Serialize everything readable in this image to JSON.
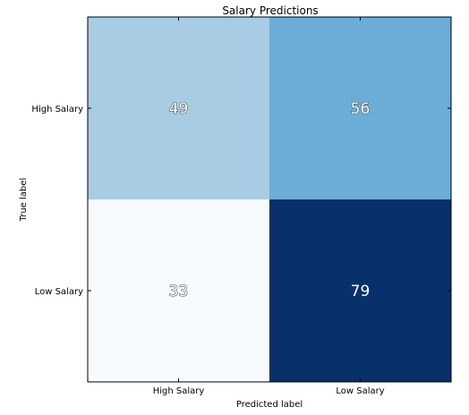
{
  "chart_data": {
    "type": "heatmap",
    "title": "Salary Predictions",
    "xlabel": "Predicted label",
    "ylabel": "True label",
    "x_categories": [
      "High Salary",
      "Low Salary"
    ],
    "y_categories": [
      "High Salary",
      "Low Salary"
    ],
    "values": [
      [
        49,
        56
      ],
      [
        33,
        79
      ]
    ],
    "colormap": "Blues",
    "colors": {
      "low": "#f7fbff",
      "high": "#08306b",
      "cells": [
        [
          "#a8cce4",
          "#6badd6"
        ],
        [
          "#f7fbff",
          "#08306b"
        ]
      ]
    },
    "grid": false,
    "legend": "none"
  }
}
